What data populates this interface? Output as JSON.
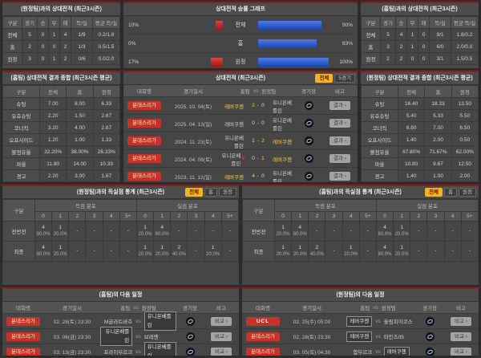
{
  "colors": {
    "panel_top_red": "#8b1e1e",
    "bar_blue": "#2b59c8",
    "bar_red": "#c42822",
    "highlight_yellow": "#f3c63e",
    "badge_red": "#c5322b",
    "selected_filter_yellow": "#f0b42c"
  },
  "h2h_vs_away": {
    "title": "(원정팀)과의 상대전적 (최근3시즌)",
    "headers": [
      "구분",
      "경기",
      "승",
      "무",
      "패",
      "득/실",
      "평균 득/실"
    ],
    "rows": [
      {
        "label": "전체",
        "cells": [
          "5",
          "0",
          "1",
          "4",
          "1/9",
          "0.2/1.8"
        ]
      },
      {
        "label": "홈",
        "cells": [
          "2",
          "0",
          "0",
          "2",
          "1/3",
          "0.5/1.5"
        ]
      },
      {
        "label": "원정",
        "cells": [
          "3",
          "0",
          "1",
          "2",
          "0/6",
          "0.0/2.0"
        ]
      }
    ]
  },
  "winrate_graph": {
    "title": "상대전적 승률 그래프",
    "rows": [
      {
        "label": "전체",
        "red_label": "10%",
        "red_pct": 10,
        "blue_label": "90%",
        "blue_pct": 90
      },
      {
        "label": "홈",
        "red_label": "0%",
        "red_pct": 0,
        "blue_label": "83%",
        "blue_pct": 83
      },
      {
        "label": "원정",
        "red_label": "17%",
        "red_pct": 17,
        "blue_label": "100%",
        "blue_pct": 100
      }
    ]
  },
  "h2h_vs_home": {
    "title": "(홈팀)과의 상대전적 (최근3시즌)",
    "headers": [
      "구분",
      "경기",
      "승",
      "무",
      "패",
      "득/실",
      "평균 득/실"
    ],
    "rows": [
      {
        "label": "전체",
        "cells": [
          "5",
          "4",
          "1",
          "0",
          "9/1",
          "1.8/0.2"
        ]
      },
      {
        "label": "홈",
        "cells": [
          "3",
          "2",
          "1",
          "0",
          "6/0",
          "2.0/0.0"
        ]
      },
      {
        "label": "원정",
        "cells": [
          "2",
          "2",
          "0",
          "0",
          "3/1",
          "1.5/0.5"
        ]
      }
    ]
  },
  "summary_home": {
    "title": "(홈팀) 상대전적 결과 종합 (최근3시즌 평균)",
    "headers": [
      "구분",
      "전체",
      "홈",
      "원정"
    ],
    "rows": [
      {
        "label": "슈팅",
        "cells": [
          "7.00",
          "8.00",
          "6.33"
        ]
      },
      {
        "label": "유효슈팅",
        "cells": [
          "2.20",
          "1.50",
          "2.67"
        ]
      },
      {
        "label": "코너킥",
        "cells": [
          "3.20",
          "4.00",
          "2.67"
        ]
      },
      {
        "label": "오프사이드",
        "cells": [
          "1.20",
          "1.00",
          "1.33"
        ]
      },
      {
        "label": "볼점유율",
        "cells": [
          "32.20%",
          "38.00%",
          "28.33%"
        ]
      },
      {
        "label": "파울",
        "cells": [
          "11.80",
          "14.00",
          "10.33"
        ]
      },
      {
        "label": "경고",
        "cells": [
          "2.20",
          "3.00",
          "1.67"
        ]
      },
      {
        "label": "퇴장",
        "cells": [
          "0.40",
          "1.00",
          "0.00"
        ]
      }
    ]
  },
  "summary_away": {
    "title": "(원정팀) 상대전적 결과 종합 (최근3시즌 평균)",
    "headers": [
      "구분",
      "전체",
      "홈",
      "원정"
    ],
    "rows": [
      {
        "label": "슈팅",
        "cells": [
          "16.40",
          "18.33",
          "13.50"
        ]
      },
      {
        "label": "유효슈팅",
        "cells": [
          "5.40",
          "5.33",
          "5.50"
        ]
      },
      {
        "label": "코너킥",
        "cells": [
          "6.80",
          "7.00",
          "6.50"
        ]
      },
      {
        "label": "오프사이드",
        "cells": [
          "1.40",
          "2.00",
          "0.50"
        ]
      },
      {
        "label": "볼점유율",
        "cells": [
          "67.80%",
          "71.67%",
          "62.00%"
        ]
      },
      {
        "label": "파울",
        "cells": [
          "10.80",
          "9.67",
          "12.50"
        ]
      },
      {
        "label": "경고",
        "cells": [
          "1.40",
          "1.00",
          "2.00"
        ]
      },
      {
        "label": "퇴장",
        "cells": [
          "0.00",
          "0.00",
          "0.00"
        ]
      }
    ]
  },
  "h2h_list": {
    "title": "상대전적 (최근3시즌)",
    "filters": {
      "all": "전체",
      "games": "5경기"
    },
    "cols": {
      "league": "대회명",
      "date": "경기일시",
      "home": "홈팀",
      "vs": "vs",
      "away": "원정팀",
      "stadium": "경기장",
      "note": "비고"
    },
    "result_label": "결과",
    "dash": "-",
    "rows": [
      {
        "league": "분데스리가",
        "league_class": "",
        "date": "2025. 10. 04(토)",
        "home": "레버쿠젠",
        "home_class": "win",
        "home_card": "",
        "score_home": "2",
        "score_away": "0",
        "away": "유니온베를린",
        "away_class": "",
        "away_card": ""
      },
      {
        "league": "분데스리가",
        "league_class": "",
        "date": "2025. 04. 13(일)",
        "home": "레버쿠젠",
        "home_class": "",
        "home_card": "",
        "score_home": "0",
        "score_away": "0",
        "away": "유니온베를린",
        "away_class": "",
        "away_card": ""
      },
      {
        "league": "분데스리가",
        "league_class": "",
        "date": "2024. 11. 23(토)",
        "home": "유니온베를린",
        "home_class": "",
        "home_card": "",
        "score_home": "1",
        "score_away": "2",
        "away": "레버쿠젠",
        "away_class": "win",
        "away_card": ""
      },
      {
        "league": "분데스리가",
        "league_class": "",
        "date": "2024. 04. 06(토)",
        "home": "유니온베를린",
        "home_class": "",
        "home_card": "■",
        "score_home": "0",
        "score_away": "1",
        "away": "레버쿠젠",
        "away_class": "win",
        "away_card": ""
      },
      {
        "league": "분데스리가",
        "league_class": "",
        "date": "2023. 11. 12(일)",
        "home": "레버쿠젠",
        "home_class": "win",
        "home_card": "",
        "score_home": "4",
        "score_away": "0",
        "away": "유니온베를린",
        "away_class": "",
        "away_card": ""
      }
    ]
  },
  "goals_home": {
    "title": "(원정팀)과의 득실점 통계 (최근3시즌)",
    "filters": {
      "all": "전체",
      "home": "홈",
      "away": "원정"
    },
    "cols": {
      "label": "구분",
      "scored": "득점 분포",
      "conceded": "실점 분포"
    },
    "bins": [
      "0",
      "1",
      "2",
      "3",
      "4",
      "5+"
    ],
    "rows": [
      {
        "label": "전반전",
        "cells": [
          {
            "n": "4",
            "p": "80.0%"
          },
          {
            "n": "1",
            "p": "20.0%"
          },
          {
            "n": "-",
            "p": ""
          },
          {
            "n": "-",
            "p": ""
          },
          {
            "n": "-",
            "p": ""
          },
          {
            "n": "-",
            "p": ""
          },
          {
            "n": "1",
            "p": "20.0%"
          },
          {
            "n": "4",
            "p": "80.0%"
          },
          {
            "n": "-",
            "p": ""
          },
          {
            "n": "-",
            "p": ""
          },
          {
            "n": "-",
            "p": ""
          },
          {
            "n": "-",
            "p": ""
          }
        ]
      },
      {
        "label": "최종",
        "cells": [
          {
            "n": "4",
            "p": "80.0%"
          },
          {
            "n": "1",
            "p": "20.0%"
          },
          {
            "n": "-",
            "p": ""
          },
          {
            "n": "-",
            "p": ""
          },
          {
            "n": "-",
            "p": ""
          },
          {
            "n": "-",
            "p": ""
          },
          {
            "n": "1",
            "p": "20.0%"
          },
          {
            "n": "1",
            "p": "20.0%"
          },
          {
            "n": "2",
            "p": "40.0%"
          },
          {
            "n": "-",
            "p": ""
          },
          {
            "n": "1",
            "p": "20.0%"
          },
          {
            "n": "-",
            "p": ""
          }
        ]
      }
    ]
  },
  "goals_away": {
    "title": "(홈팀)과의 득실점 통계 (최근3시즌)",
    "filters": {
      "all": "전체",
      "home": "홈",
      "away": "원정"
    },
    "cols": {
      "label": "구분",
      "scored": "득점 분포",
      "conceded": "실점 분포"
    },
    "bins": [
      "0",
      "1",
      "2",
      "3",
      "4",
      "5+"
    ],
    "rows": [
      {
        "label": "전반전",
        "cells": [
          {
            "n": "1",
            "p": "20.0%"
          },
          {
            "n": "4",
            "p": "80.0%"
          },
          {
            "n": "-",
            "p": ""
          },
          {
            "n": "-",
            "p": ""
          },
          {
            "n": "-",
            "p": ""
          },
          {
            "n": "-",
            "p": ""
          },
          {
            "n": "4",
            "p": "80.0%"
          },
          {
            "n": "1",
            "p": "20.0%"
          },
          {
            "n": "-",
            "p": ""
          },
          {
            "n": "-",
            "p": ""
          },
          {
            "n": "-",
            "p": ""
          },
          {
            "n": "-",
            "p": ""
          }
        ]
      },
      {
        "label": "최종",
        "cells": [
          {
            "n": "1",
            "p": "20.0%"
          },
          {
            "n": "1",
            "p": "20.0%"
          },
          {
            "n": "2",
            "p": "40.0%"
          },
          {
            "n": "-",
            "p": ""
          },
          {
            "n": "1",
            "p": "20.0%"
          },
          {
            "n": "-",
            "p": ""
          },
          {
            "n": "4",
            "p": "80.0%"
          },
          {
            "n": "1",
            "p": "20.0%"
          },
          {
            "n": "-",
            "p": ""
          },
          {
            "n": "-",
            "p": ""
          },
          {
            "n": "-",
            "p": ""
          },
          {
            "n": "-",
            "p": ""
          }
        ]
      }
    ]
  },
  "schedule_home": {
    "title": "(홈팀)의 다음 일정",
    "cols": {
      "league": "대회명",
      "date": "경기일시",
      "home": "홈팀",
      "vs": "vs",
      "away": "원정팀",
      "stadium": "경기장",
      "note": "비고"
    },
    "compare_label": "비교",
    "rows": [
      {
        "league": "분데스리가",
        "league_class": "",
        "date": "02. 28(토) 23:30",
        "home": "M글라트바흐",
        "home_class": "",
        "away": "유니온베를린",
        "away_class": "focus"
      },
      {
        "league": "분데스리가",
        "league_class": "",
        "date": "03. 06(금) 23:30",
        "home": "유니온베를린",
        "home_class": "focus",
        "away": "브레멘",
        "away_class": ""
      },
      {
        "league": "분데스리가",
        "league_class": "",
        "date": "03. 13(금) 23:30",
        "home": "프라이부르크",
        "home_class": "",
        "away": "유니온베를린",
        "away_class": "focus"
      }
    ]
  },
  "schedule_away": {
    "title": "(원정팀)의 다음 일정",
    "cols": {
      "league": "대회명",
      "date": "경기일시",
      "home": "홈팀",
      "vs": "vs",
      "away": "원정팀",
      "stadium": "경기장",
      "note": "비고"
    },
    "compare_label": "비교",
    "rows": [
      {
        "league": "UCL",
        "league_class": "ucl",
        "date": "02. 25(수) 05:00",
        "home": "레버쿠젠",
        "home_class": "focus",
        "away": "올림피아코스",
        "away_class": ""
      },
      {
        "league": "분데스리가",
        "league_class": "",
        "date": "02. 28(토) 23:30",
        "home": "레버쿠젠",
        "home_class": "focus",
        "away": "마인츠05",
        "away_class": ""
      },
      {
        "league": "분데스리가",
        "league_class": "",
        "date": "03. 05(목) 04:30",
        "home": "함부르크",
        "home_class": "",
        "away": "레버쿠젠",
        "away_class": "focus"
      }
    ]
  }
}
